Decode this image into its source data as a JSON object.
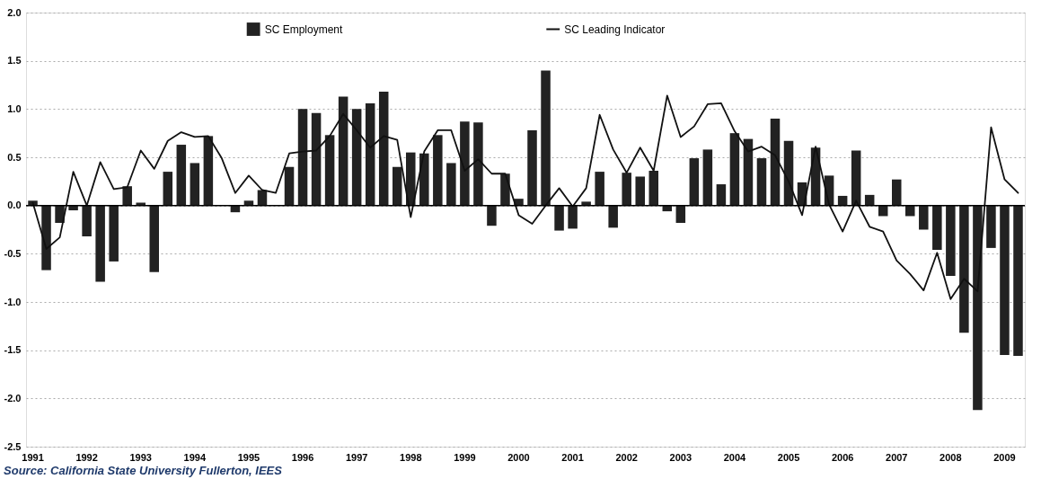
{
  "chart_data": {
    "type": "bar",
    "categories": [
      "1991",
      null,
      null,
      null,
      "1992",
      null,
      null,
      null,
      "1993",
      null,
      null,
      null,
      "1994",
      null,
      null,
      null,
      "1995",
      null,
      null,
      null,
      "1996",
      null,
      null,
      null,
      "1997",
      null,
      null,
      null,
      "1998",
      null,
      null,
      null,
      "1999",
      null,
      null,
      null,
      "2000",
      null,
      null,
      null,
      "2001",
      null,
      null,
      null,
      "2002",
      null,
      null,
      null,
      "2003",
      null,
      null,
      null,
      "2004",
      null,
      null,
      null,
      "2005",
      null,
      null,
      null,
      "2006",
      null,
      null,
      null,
      "2007",
      null,
      null,
      null,
      "2008",
      null,
      null,
      null,
      "2009",
      null
    ],
    "series": [
      {
        "name": "SC Employment",
        "color": "#222222",
        "values": [
          0.05,
          -0.67,
          -0.18,
          -0.05,
          -0.32,
          -0.79,
          -0.58,
          0.2,
          0.03,
          -0.69,
          0.35,
          0.63,
          0.44,
          0.72,
          null,
          -0.07,
          0.05,
          0.16,
          null,
          0.4,
          1.0,
          0.96,
          0.73,
          1.13,
          1.0,
          1.06,
          1.18,
          0.4,
          0.55,
          0.54,
          0.73,
          0.44,
          0.87,
          0.86,
          -0.21,
          0.33,
          0.07,
          0.78,
          1.4,
          -0.26,
          -0.24,
          0.04,
          0.35,
          -0.23,
          0.34,
          0.3,
          0.36,
          -0.06,
          -0.18,
          0.49,
          0.58,
          0.22,
          0.75,
          0.69,
          0.49,
          0.9,
          0.67,
          0.24,
          0.6,
          0.31,
          0.1,
          0.57,
          0.11,
          -0.11,
          0.27,
          -0.11,
          -0.25,
          -0.46,
          -0.73,
          -1.32,
          -2.12,
          -0.44,
          -1.55,
          -1.56
        ]
      },
      {
        "name": "SC Leading Indicator",
        "type": "line",
        "color": "#111111",
        "values": [
          0.03,
          -0.45,
          -0.33,
          0.35,
          0.0,
          0.45,
          0.17,
          0.19,
          0.57,
          0.38,
          0.67,
          0.76,
          0.71,
          0.72,
          0.49,
          0.13,
          0.31,
          0.16,
          0.13,
          0.54,
          0.56,
          0.57,
          0.72,
          0.95,
          0.78,
          0.6,
          0.72,
          0.68,
          -0.12,
          0.56,
          0.78,
          0.78,
          0.36,
          0.48,
          0.33,
          0.33,
          -0.1,
          -0.19,
          0.0,
          0.18,
          -0.01,
          0.18,
          0.94,
          0.58,
          0.34,
          0.6,
          0.36,
          1.14,
          0.71,
          0.82,
          1.05,
          1.06,
          0.77,
          0.56,
          0.61,
          0.52,
          0.25,
          -0.1,
          0.61,
          0.01,
          -0.27,
          0.05,
          -0.22,
          -0.27,
          -0.57,
          -0.71,
          -0.88,
          -0.49,
          -0.97,
          -0.76,
          -0.89,
          0.81,
          0.27,
          0.13
        ]
      }
    ],
    "ylim": [
      -2.5,
      2.0
    ],
    "yticks": [
      {
        "value": -2.5,
        "label": "-2.5"
      },
      {
        "value": -2,
        "label": "-2.0"
      },
      {
        "value": -1.5,
        "label": "-1.5"
      },
      {
        "value": -1,
        "label": "-1.0"
      },
      {
        "value": -0.5,
        "label": "-0.5"
      },
      {
        "value": 0,
        "label": "0.0"
      },
      {
        "value": 0.5,
        "label": "0.5"
      },
      {
        "value": 1,
        "label": "1.0"
      },
      {
        "value": 1.5,
        "label": "1.5"
      },
      {
        "value": 2,
        "label": "2.0"
      }
    ],
    "grid": "y",
    "legend": "top",
    "ref_lines": [
      {
        "axis": "y",
        "value": 0
      }
    ],
    "annotations": [
      "Source: California State University Fullerton, IEES"
    ]
  }
}
